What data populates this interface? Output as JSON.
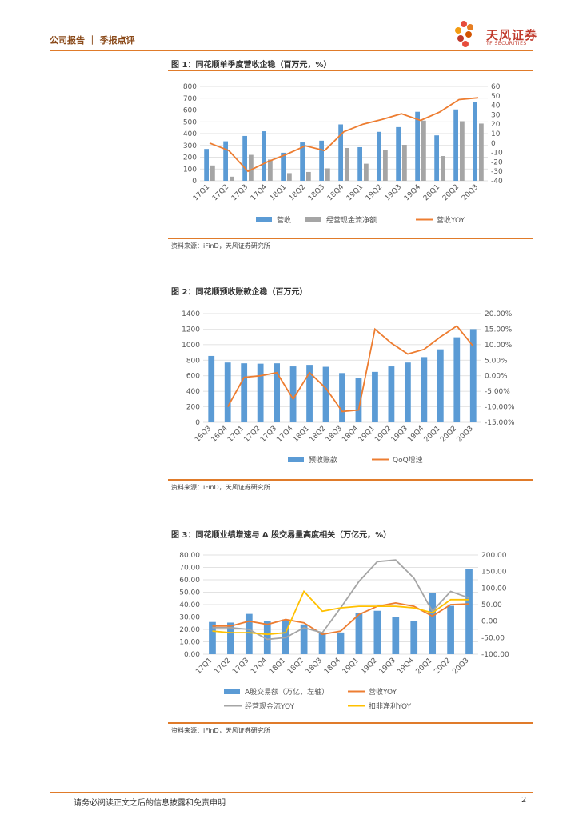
{
  "header": {
    "left": "公司报告 ｜ 季报点评",
    "brand_cn": "天风证券",
    "brand_en": "TF SECURITIES"
  },
  "footer": {
    "disclaimer": "请务必阅读正文之后的信息披露和免责申明",
    "page": "2"
  },
  "figures": [
    {
      "title": "图 1：同花顺单季度营收企稳（百万元，%）",
      "source": "资料来源：iFinD，天风证券研究所"
    },
    {
      "title": "图 2：同花顺预收账款企稳（百万元）",
      "source": "资料来源：iFinD，天风证券研究所"
    },
    {
      "title": "图 3：同花顺业绩增速与 A 股交易量高度相关（万亿元，%）",
      "source": "资料来源：iFinD，天风证券研究所"
    }
  ],
  "colors": {
    "blue": "#5b9bd5",
    "gray": "#a5a5a5",
    "orange": "#ed7d31",
    "yellow": "#ffc000",
    "accent": "#e07b2a"
  },
  "chart_data": [
    {
      "type": "bar",
      "categories": [
        "17Q1",
        "17Q2",
        "17Q3",
        "17Q4",
        "18Q1",
        "18Q2",
        "18Q3",
        "18Q4",
        "19Q1",
        "19Q2",
        "19Q3",
        "19Q4",
        "20Q1",
        "20Q2",
        "20Q3"
      ],
      "series": [
        {
          "name": "营收",
          "type": "bar",
          "axis": "left",
          "values": [
            270,
            335,
            380,
            420,
            238,
            325,
            340,
            478,
            285,
            415,
            455,
            585,
            385,
            605,
            670
          ]
        },
        {
          "name": "经营现金流净额",
          "type": "bar",
          "axis": "left",
          "values": [
            130,
            35,
            220,
            180,
            65,
            75,
            105,
            278,
            145,
            262,
            305,
            510,
            210,
            505,
            485
          ]
        },
        {
          "name": "营收YOY",
          "type": "line",
          "axis": "right",
          "values": [
            0,
            -8,
            -30,
            -20,
            -12,
            -3,
            -8,
            12,
            20,
            25,
            31,
            24,
            33,
            46,
            48
          ]
        }
      ],
      "yleft": {
        "min": 0,
        "max": 800,
        "step": 100,
        "labels": [
          "0",
          "100",
          "200",
          "300",
          "400",
          "500",
          "600",
          "700",
          "800"
        ]
      },
      "yright": {
        "min": -40,
        "max": 60,
        "step": 10,
        "labels": [
          "-40",
          "-30",
          "-20",
          "-10",
          "0",
          "10",
          "20",
          "30",
          "40",
          "50",
          "60"
        ]
      },
      "legend": [
        "营收",
        "经营现金流净额",
        "营收YOY"
      ]
    },
    {
      "type": "bar",
      "categories": [
        "16Q3",
        "16Q4",
        "17Q1",
        "17Q2",
        "17Q3",
        "17Q4",
        "18Q1",
        "18Q2",
        "18Q3",
        "18Q4",
        "19Q1",
        "19Q2",
        "19Q3",
        "19Q4",
        "20Q1",
        "20Q2",
        "20Q3"
      ],
      "series": [
        {
          "name": "预收账款",
          "type": "bar",
          "axis": "left",
          "values": [
            855,
            770,
            760,
            755,
            760,
            720,
            740,
            715,
            635,
            570,
            650,
            720,
            770,
            840,
            940,
            1095,
            1200
          ]
        },
        {
          "name": "QoQ增速",
          "type": "line",
          "axis": "right",
          "values": [
            null,
            -10,
            -0.5,
            0,
            1,
            -7.5,
            1,
            -4,
            -11.5,
            -11,
            15,
            10.5,
            7,
            8.5,
            12.5,
            16,
            9.5
          ]
        }
      ],
      "yleft": {
        "min": 0,
        "max": 1400,
        "step": 200,
        "labels": [
          "0",
          "200",
          "400",
          "600",
          "800",
          "1000",
          "1200",
          "1400"
        ]
      },
      "yright": {
        "min": -15,
        "max": 20,
        "step": 5,
        "labels": [
          "-15.00%",
          "-10.00%",
          "-5.00%",
          "0.00%",
          "5.00%",
          "10.00%",
          "15.00%",
          "20.00%"
        ]
      },
      "legend": [
        "预收账款",
        "QoQ增速"
      ]
    },
    {
      "type": "bar",
      "categories": [
        "17Q1",
        "17Q2",
        "17Q3",
        "17Q4",
        "18Q1",
        "18Q2",
        "18Q3",
        "18Q4",
        "19Q1",
        "19Q2",
        "19Q3",
        "19Q4",
        "20Q1",
        "20Q2",
        "20Q3"
      ],
      "series": [
        {
          "name": "A股交易额（万亿，左轴）",
          "type": "bar",
          "axis": "left",
          "values": [
            26,
            25.5,
            32.5,
            27,
            28,
            24,
            17.5,
            17.5,
            33.5,
            35,
            30,
            27,
            49.5,
            39,
            69
          ]
        },
        {
          "name": "营收YOY",
          "type": "line",
          "axis": "right",
          "values": [
            -15,
            -15,
            0,
            -10,
            5,
            -5,
            -40,
            -30,
            20,
            45,
            55,
            45,
            15,
            50,
            52
          ]
        },
        {
          "name": "经营现金流YOY",
          "type": "line",
          "axis": "right",
          "values": [
            -20,
            -20,
            -25,
            -55,
            -50,
            -20,
            -35,
            40,
            120,
            180,
            185,
            130,
            30,
            90,
            70
          ]
        },
        {
          "name": "扣非净利YOY",
          "type": "line",
          "axis": "right",
          "values": [
            -30,
            -35,
            -35,
            -40,
            -35,
            90,
            30,
            40,
            45,
            45,
            45,
            40,
            25,
            65,
            65
          ]
        }
      ],
      "yleft": {
        "min": 0,
        "max": 80,
        "step": 10,
        "labels": [
          "0.00",
          "10.00",
          "20.00",
          "30.00",
          "40.00",
          "50.00",
          "60.00",
          "70.00",
          "80.00"
        ]
      },
      "yright": {
        "min": -100,
        "max": 200,
        "step": 50,
        "labels": [
          "-100.00",
          "-50.00",
          "0.00",
          "50.00",
          "100.00",
          "150.00",
          "200.00"
        ]
      },
      "legend": [
        "A股交易额（万亿，左轴）",
        "营收YOY",
        "经营现金流YOY",
        "扣非净利YOY"
      ]
    }
  ]
}
